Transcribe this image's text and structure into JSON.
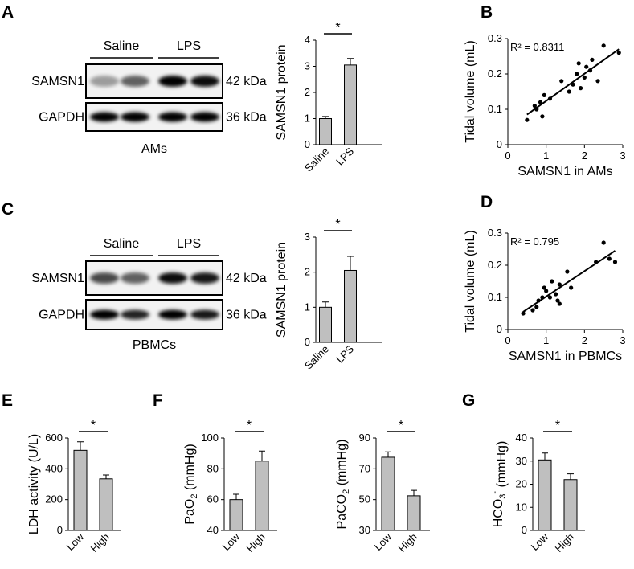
{
  "panel_labels": [
    "A",
    "B",
    "C",
    "D",
    "E",
    "F",
    "G"
  ],
  "blots": [
    {
      "groups": [
        "Saline",
        "LPS"
      ],
      "rows": [
        {
          "name": "SAMSN1",
          "size": "42 kDa"
        },
        {
          "name": "GAPDH",
          "size": "36 kDa"
        }
      ],
      "caption": "AMs"
    },
    {
      "groups": [
        "Saline",
        "LPS"
      ],
      "rows": [
        {
          "name": "SAMSN1",
          "size": "42 kDa"
        },
        {
          "name": "GAPDH",
          "size": "36 kDa"
        }
      ],
      "caption": "PBMCs"
    }
  ],
  "chart_data": [
    {
      "type": "bar",
      "ylabel_parts": [
        {
          "t": "SAMSN1 protein"
        }
      ],
      "categories": [
        "Saline",
        "LPS"
      ],
      "values": [
        1.0,
        3.05
      ],
      "errors": [
        0.08,
        0.25
      ],
      "color": "#bfbfbf",
      "ylim": [
        0,
        4
      ],
      "yticks": [
        0,
        1,
        2,
        3,
        4
      ],
      "significance": "*"
    },
    {
      "type": "scatter",
      "xlabel": "SAMSN1 in AMs",
      "ylabel": "Tidal volume (mL)",
      "annotation": "R² = 0.8311",
      "x": [
        0.5,
        0.7,
        0.75,
        0.85,
        0.9,
        0.95,
        1.1,
        1.4,
        1.6,
        1.7,
        1.8,
        1.85,
        1.9,
        2.0,
        2.05,
        2.15,
        2.2,
        2.35,
        2.5,
        2.9
      ],
      "values": [
        0.07,
        0.11,
        0.1,
        0.12,
        0.08,
        0.14,
        0.13,
        0.18,
        0.15,
        0.17,
        0.2,
        0.23,
        0.16,
        0.19,
        0.22,
        0.21,
        0.24,
        0.18,
        0.28,
        0.26
      ],
      "fit": {
        "x": [
          0.5,
          2.9
        ],
        "y": [
          0.085,
          0.27
        ]
      },
      "color": "#000000",
      "xlim": [
        0,
        3
      ],
      "xticks": [
        0,
        1,
        2,
        3
      ],
      "ylim": [
        0,
        0.3
      ],
      "yticks": [
        0,
        0.1,
        0.2,
        0.3
      ]
    },
    {
      "type": "bar",
      "ylabel_parts": [
        {
          "t": "SAMSN1 protein"
        }
      ],
      "categories": [
        "Saline",
        "LPS"
      ],
      "values": [
        1.0,
        2.05
      ],
      "errors": [
        0.15,
        0.4
      ],
      "color": "#bfbfbf",
      "ylim": [
        0,
        3
      ],
      "yticks": [
        0,
        1,
        2,
        3
      ],
      "significance": "*"
    },
    {
      "type": "scatter",
      "xlabel": "SAMSN1 in PBMCs",
      "ylabel": "Tidal volume (mL)",
      "annotation": "R² = 0.795",
      "x": [
        0.4,
        0.65,
        0.75,
        0.8,
        0.9,
        0.95,
        1.0,
        1.1,
        1.15,
        1.25,
        1.3,
        1.35,
        1.35,
        1.55,
        1.65,
        2.3,
        2.5,
        2.65,
        2.8
      ],
      "values": [
        0.05,
        0.06,
        0.07,
        0.09,
        0.1,
        0.13,
        0.12,
        0.1,
        0.15,
        0.11,
        0.09,
        0.14,
        0.08,
        0.18,
        0.13,
        0.21,
        0.27,
        0.22,
        0.21
      ],
      "fit": {
        "x": [
          0.4,
          2.8
        ],
        "y": [
          0.055,
          0.245
        ]
      },
      "color": "#000000",
      "xlim": [
        0,
        3
      ],
      "xticks": [
        0,
        1,
        2,
        3
      ],
      "ylim": [
        0,
        0.3
      ],
      "yticks": [
        0,
        0.1,
        0.2,
        0.3
      ]
    },
    {
      "type": "bar",
      "ylabel_parts": [
        {
          "t": "LDH activity (U/L)"
        }
      ],
      "categories": [
        "Low",
        "High"
      ],
      "values": [
        520,
        335
      ],
      "errors": [
        55,
        25
      ],
      "color": "#bfbfbf",
      "ylim": [
        0,
        600
      ],
      "yticks": [
        0,
        200,
        400,
        600
      ],
      "significance": "*"
    },
    {
      "type": "bar",
      "ylabel_parts": [
        {
          "t": "PaO"
        },
        {
          "t": "2",
          "sub": true
        },
        {
          "t": " (mmHg)"
        }
      ],
      "categories": [
        "Low",
        "High"
      ],
      "values": [
        60,
        85
      ],
      "errors": [
        3.5,
        6.5
      ],
      "color": "#bfbfbf",
      "ylim": [
        40,
        100
      ],
      "yticks": [
        40,
        60,
        80,
        100
      ],
      "significance": "*"
    },
    {
      "type": "bar",
      "ylabel_parts": [
        {
          "t": "PaCO"
        },
        {
          "t": "2",
          "sub": true
        },
        {
          "t": " (mmHg)"
        }
      ],
      "categories": [
        "Low",
        "High"
      ],
      "values": [
        77.5,
        52.5
      ],
      "errors": [
        3.5,
        3.5
      ],
      "color": "#bfbfbf",
      "ylim": [
        30,
        90
      ],
      "yticks": [
        30,
        50,
        70,
        90
      ],
      "significance": "*"
    },
    {
      "type": "bar",
      "ylabel_parts": [
        {
          "t": "HCO"
        },
        {
          "t": "3",
          "sub": true
        },
        {
          "t": "-",
          "sup": true
        },
        {
          "t": " (mmHg)"
        }
      ],
      "categories": [
        "Low",
        "High"
      ],
      "values": [
        30.5,
        22
      ],
      "errors": [
        3,
        2.5
      ],
      "color": "#bfbfbf",
      "ylim": [
        0,
        40
      ],
      "yticks": [
        0,
        10,
        20,
        30,
        40
      ],
      "significance": "*"
    }
  ]
}
